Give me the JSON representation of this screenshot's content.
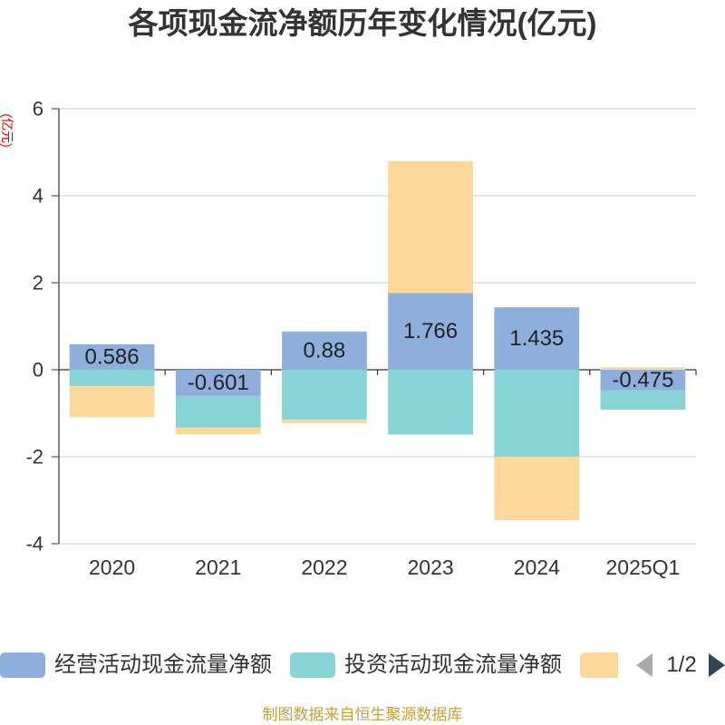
{
  "colors": {
    "title": "#333333",
    "axis": "#333333",
    "grid": "#cccccc",
    "tick_label": "#333333",
    "data_label": "#222222",
    "unit_label": "#e00000",
    "footer": "#c8a038",
    "pager_disabled": "#aaaaaa",
    "pager_active": "#2f4554"
  },
  "chart_data": {
    "type": "bar",
    "stacked": true,
    "title": "各项现金流净额历年变化情况(亿元)",
    "ylabel": "(亿元)",
    "categories": [
      "2020",
      "2021",
      "2022",
      "2023",
      "2024",
      "2025Q1"
    ],
    "ylim": [
      -4,
      6
    ],
    "yticks": [
      6,
      4,
      2,
      0,
      -2,
      -4
    ],
    "grid": true,
    "legend_position": "bottom",
    "series": [
      {
        "name": "经营活动现金流量净额",
        "color": "#8eafdc",
        "values": [
          0.586,
          -0.601,
          0.88,
          1.766,
          1.435,
          -0.475
        ],
        "data_labels": true
      },
      {
        "name": "投资活动现金流量净额",
        "color": "#87d4d7",
        "values": [
          -0.38,
          -0.73,
          -1.15,
          -1.49,
          -2.0,
          -0.44
        ],
        "data_labels": false
      },
      {
        "color": "#fdd89b",
        "values": [
          -0.71,
          -0.15,
          -0.08,
          3.03,
          -1.46,
          0.06
        ],
        "data_labels": false
      }
    ]
  },
  "legend": {
    "page_indicator": "1/2",
    "prev_icon": "arrow-left-icon",
    "next_icon": "arrow-right-icon"
  },
  "footer": "制图数据来自恒生聚源数据库"
}
